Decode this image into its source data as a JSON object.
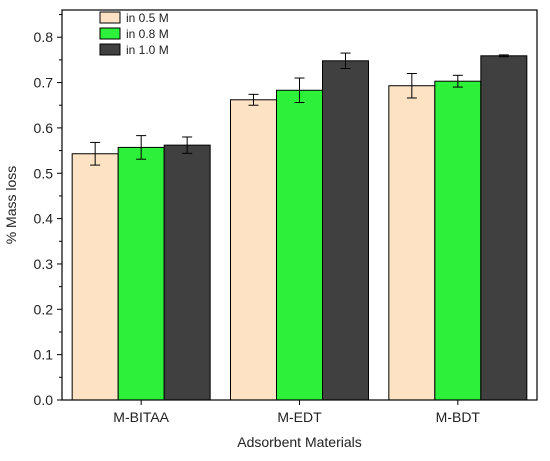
{
  "chart_data": {
    "type": "bar",
    "title": "",
    "xlabel": "Adsorbent Materials",
    "ylabel": "% Mass loss",
    "ylim": [
      0,
      0.86
    ],
    "yticks": [
      "0.0",
      "0.1",
      "0.2",
      "0.3",
      "0.4",
      "0.5",
      "0.6",
      "0.7",
      "0.8"
    ],
    "categories": [
      "M-BITAA",
      "M-EDT",
      "M-BDT"
    ],
    "series": [
      {
        "name": "in 0.5 M",
        "color": "#fde3c4",
        "values": [
          0.543,
          0.662,
          0.693
        ],
        "errors": [
          0.025,
          0.012,
          0.027
        ]
      },
      {
        "name": "in 0.8 M",
        "color": "#2cf03a",
        "values": [
          0.557,
          0.683,
          0.703
        ],
        "errors": [
          0.026,
          0.027,
          0.013
        ]
      },
      {
        "name": "in 1.0 M",
        "color": "#404040",
        "values": [
          0.562,
          0.748,
          0.759
        ],
        "errors": [
          0.018,
          0.017,
          0.002
        ]
      }
    ],
    "grid": false,
    "legend_position": "top-left",
    "error_bars": true
  }
}
